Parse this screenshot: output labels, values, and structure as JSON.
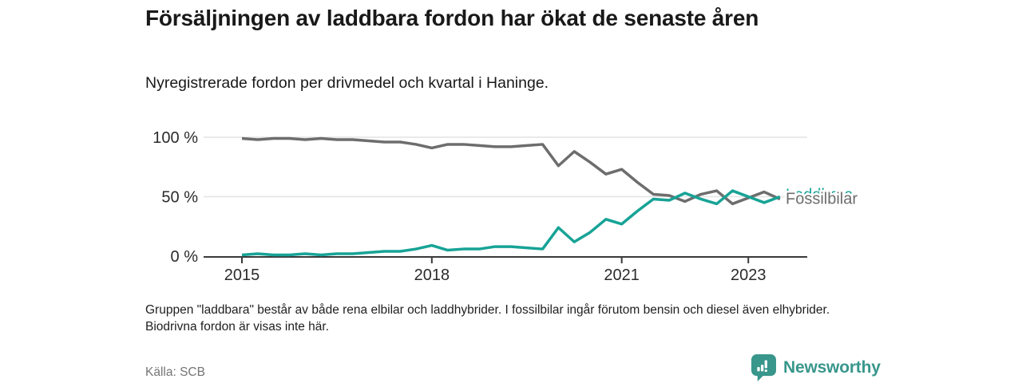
{
  "header": {
    "title": "Försäljningen av laddbara fordon har ökat de senaste åren",
    "subtitle": "Nyregistrerade fordon per drivmedel och kvartal i Haninge."
  },
  "footnote": "Gruppen \"laddbara\" består av både rena elbilar och laddhybrider. I fossilbilar ingår förutom bensin och diesel även elhybrider. Biodrivna fordon är visas inte här.",
  "source": "Källa: SCB",
  "branding": {
    "name": "Newsworthy",
    "icon": "bar-chart-speech-bubble-icon",
    "color": "#38968b"
  },
  "chart_data": {
    "type": "line",
    "unit": "percent",
    "x_period": "quarterly",
    "x": [
      "2015Q1",
      "2015Q2",
      "2015Q3",
      "2015Q4",
      "2016Q1",
      "2016Q2",
      "2016Q3",
      "2016Q4",
      "2017Q1",
      "2017Q2",
      "2017Q3",
      "2017Q4",
      "2018Q1",
      "2018Q2",
      "2018Q3",
      "2018Q4",
      "2019Q1",
      "2019Q2",
      "2019Q3",
      "2019Q4",
      "2020Q1",
      "2020Q2",
      "2020Q3",
      "2020Q4",
      "2021Q1",
      "2021Q2",
      "2021Q3",
      "2021Q4",
      "2022Q1",
      "2022Q2",
      "2022Q3",
      "2022Q4",
      "2023Q1",
      "2023Q2",
      "2023Q3"
    ],
    "x_tick_labels": [
      "2015",
      "2018",
      "2021",
      "2023"
    ],
    "x_tick_indices": [
      0,
      12,
      24,
      32
    ],
    "y_ticks": [
      0,
      50,
      100
    ],
    "y_tick_labels": [
      "0 %",
      "50 %",
      "100 %"
    ],
    "ylim": [
      0,
      100
    ],
    "grid": "horizontal",
    "legend_position": "end-of-line",
    "series": [
      {
        "name": "Fossilbilar",
        "color": "#6d6d6d",
        "values": [
          99,
          98,
          99,
          99,
          98,
          99,
          98,
          98,
          97,
          96,
          96,
          94,
          91,
          94,
          94,
          93,
          92,
          92,
          93,
          94,
          76,
          88,
          79,
          69,
          73,
          62,
          52,
          51,
          46,
          52,
          55,
          44,
          49,
          54,
          48
        ]
      },
      {
        "name": "Laddbara",
        "color": "#17a396",
        "values": [
          1,
          2,
          1,
          1,
          2,
          1,
          2,
          2,
          3,
          4,
          4,
          6,
          9,
          5,
          6,
          6,
          8,
          8,
          7,
          6,
          24,
          12,
          20,
          31,
          27,
          38,
          48,
          47,
          53,
          48,
          44,
          55,
          50,
          45,
          50
        ]
      }
    ]
  }
}
